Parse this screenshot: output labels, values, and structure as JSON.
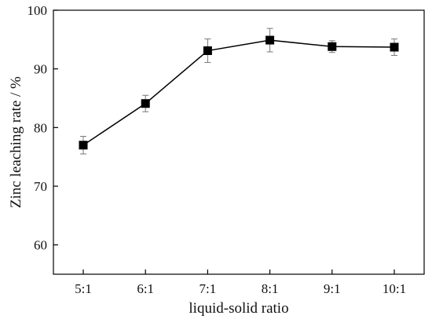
{
  "chart_data": {
    "type": "line",
    "categories": [
      "5:1",
      "6:1",
      "7:1",
      "8:1",
      "9:1",
      "10:1"
    ],
    "series": [
      {
        "values": [
          77.0,
          84.1,
          93.1,
          94.9,
          93.8,
          93.7
        ],
        "error": [
          1.5,
          1.4,
          2.0,
          2.0,
          1.0,
          1.4
        ],
        "marker": "square",
        "color": "#000000"
      }
    ],
    "xlabel": "liquid-solid ratio",
    "ylabel": "Zinc leaching rate / %",
    "ylim": [
      55,
      100
    ],
    "yticks": [
      60,
      70,
      80,
      90,
      100
    ],
    "grid": false,
    "legend": "none"
  }
}
